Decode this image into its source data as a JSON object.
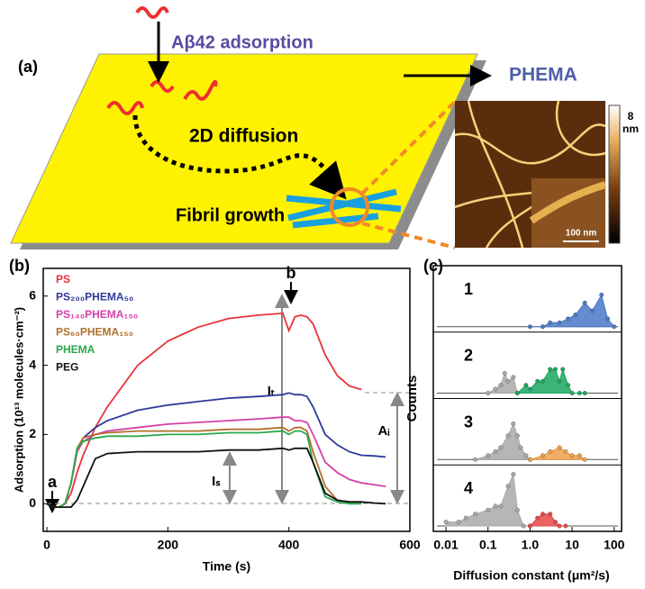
{
  "panel_a": {
    "label": "(a)",
    "adsorption": "Aβ42 adsorption",
    "diffusion": "2D diffusion",
    "growth": "Fibril growth",
    "material": "PHEMA",
    "scale_max": "8",
    "scale_unit": "nm",
    "scale_bar": "100 nm"
  },
  "chart_data": [
    {
      "type": "line",
      "panel_label": "(b)",
      "xlabel": "Time (s)",
      "ylabel": "Adsorption (10¹³ molecules·cm⁻²)",
      "xlim": [
        -6,
        600
      ],
      "xticks": [
        0,
        200,
        400,
        600
      ],
      "ylim": [
        -0.8,
        6.8
      ],
      "yticks": [
        0,
        2,
        4,
        6
      ],
      "grid": false,
      "legend": "upper left",
      "annotations": {
        "a": "a",
        "b": "b",
        "it": "Iₜ",
        "is": "Iₛ",
        "ai": "Aᵢ"
      },
      "x": [
        0,
        10,
        20,
        30,
        40,
        50,
        60,
        80,
        100,
        150,
        200,
        250,
        300,
        350,
        390,
        400,
        410,
        420,
        430,
        440,
        460,
        480,
        500,
        520,
        540,
        560
      ],
      "series": [
        {
          "name": "PS",
          "color": "#e8333a",
          "values": [
            0,
            -0.1,
            -0.1,
            0,
            0.3,
            0.9,
            1.4,
            2.2,
            2.8,
            4.0,
            4.7,
            5.1,
            5.35,
            5.45,
            5.5,
            5.0,
            5.4,
            5.45,
            5.4,
            5.2,
            4.3,
            3.7,
            3.4,
            3.3,
            null,
            null
          ]
        },
        {
          "name": "PS₂₀₀PHEMA₅₀",
          "color": "#2e3a9a",
          "values": [
            0,
            -0.1,
            -0.1,
            0,
            0.6,
            1.5,
            1.9,
            2.2,
            2.4,
            2.7,
            2.85,
            2.95,
            3.05,
            3.1,
            3.15,
            3.2,
            3.15,
            3.15,
            3.1,
            2.8,
            2.0,
            1.7,
            1.5,
            1.4,
            1.38,
            1.35
          ]
        },
        {
          "name": "PS₁₄₀PHEMA₁₅₀",
          "color": "#d440a8",
          "values": [
            0,
            -0.1,
            -0.1,
            0,
            0.6,
            1.5,
            1.8,
            2.0,
            2.1,
            2.2,
            2.3,
            2.35,
            2.4,
            2.45,
            2.5,
            2.5,
            2.4,
            2.4,
            2.35,
            2.0,
            1.2,
            0.9,
            0.7,
            0.6,
            0.55,
            0.5
          ]
        },
        {
          "name": "PS₆₀PHEMA₁₅₀",
          "color": "#b0702a",
          "values": [
            0,
            -0.1,
            -0.1,
            0,
            0.6,
            1.6,
            1.9,
            2.0,
            2.05,
            2.1,
            2.1,
            2.1,
            2.15,
            2.15,
            2.2,
            2.1,
            2.2,
            2.2,
            2.1,
            1.5,
            0.5,
            0.1,
            0.05,
            0.05,
            null,
            null
          ]
        },
        {
          "name": "PHEMA",
          "color": "#2aa84a",
          "values": [
            0,
            -0.1,
            -0.1,
            0,
            0.6,
            1.6,
            1.8,
            1.9,
            1.95,
            1.95,
            2.0,
            2.0,
            2.05,
            2.05,
            2.1,
            2.0,
            2.1,
            2.1,
            2.0,
            1.2,
            0.2,
            0.05,
            0,
            0,
            null,
            null
          ]
        },
        {
          "name": "PEG",
          "color": "#111111",
          "values": [
            0,
            -0.1,
            -0.1,
            -0.1,
            -0.1,
            0.1,
            0.5,
            1.3,
            1.45,
            1.5,
            1.5,
            1.5,
            1.55,
            1.55,
            1.6,
            1.55,
            1.6,
            1.6,
            1.6,
            1.2,
            0.3,
            0.1,
            0.05,
            0.05,
            0.02,
            0
          ]
        }
      ]
    },
    {
      "type": "area",
      "panel_label": "(c)",
      "xlabel": "Diffusion constant (μm²/s)",
      "ylabel": "Counts",
      "xscale": "log",
      "xlim": [
        0.005,
        150
      ],
      "xticks": [
        0.01,
        0.1,
        {
          "value": 1,
          "label": "1.0"
        },
        10,
        100
      ],
      "ylim": [
        0,
        14
      ],
      "subplots": [
        {
          "label": "1",
          "series": [
            {
              "color": "#4a78c8",
              "x": [
                1,
                2,
                3,
                5,
                8,
                12,
                20,
                30,
                50,
                70,
                100
              ],
              "values": [
                0,
                0,
                1,
                1,
                2,
                3,
                6,
                4,
                8,
                2,
                0
              ]
            }
          ]
        },
        {
          "label": "2",
          "series": [
            {
              "color": "#a9a9a9",
              "x": [
                0.1,
                0.15,
                0.2,
                0.25,
                0.3,
                0.4,
                0.5
              ],
              "values": [
                0,
                1,
                2,
                5,
                3,
                4,
                0
              ]
            },
            {
              "color": "#1aa860",
              "x": [
                0.5,
                0.8,
                1,
                1.5,
                2,
                3,
                4,
                5,
                6,
                8,
                10,
                15,
                20
              ],
              "values": [
                0,
                2,
                1,
                3,
                3,
                6,
                6,
                3,
                6,
                2,
                0,
                0,
                0
              ]
            }
          ]
        },
        {
          "label": "3",
          "series": [
            {
              "color": "#a9a9a9",
              "x": [
                0.05,
                0.1,
                0.15,
                0.2,
                0.3,
                0.4,
                0.5,
                0.6,
                0.8,
                1
              ],
              "values": [
                0,
                1,
                2,
                3,
                6,
                9,
                6,
                3,
                1,
                0
              ]
            },
            {
              "color": "#eea04a",
              "x": [
                1,
                2,
                3,
                5,
                7,
                10,
                15,
                20
              ],
              "values": [
                0,
                1,
                2,
                3,
                2,
                1,
                1,
                0
              ]
            }
          ]
        },
        {
          "label": "4",
          "series": [
            {
              "color": "#a9a9a9",
              "x": [
                0.01,
                0.02,
                0.03,
                0.05,
                0.1,
                0.15,
                0.2,
                0.3,
                0.4,
                0.5,
                0.7,
                1
              ],
              "values": [
                1,
                1,
                2,
                3,
                4,
                5,
                5,
                10,
                13,
                4,
                0,
                0
              ]
            },
            {
              "color": "#e84848",
              "x": [
                1,
                1.5,
                2,
                3,
                4,
                5,
                7
              ],
              "values": [
                0,
                2,
                3,
                3,
                1,
                0,
                0
              ]
            }
          ]
        }
      ]
    }
  ]
}
